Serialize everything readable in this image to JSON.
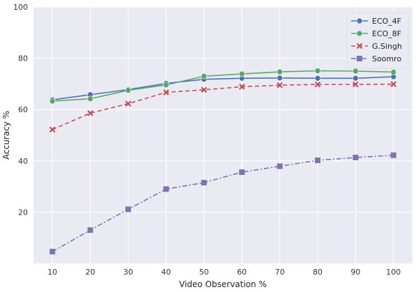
{
  "chart_data": {
    "type": "line",
    "x": [
      10,
      20,
      30,
      40,
      50,
      60,
      70,
      80,
      90,
      100
    ],
    "xticks": [
      "10",
      "20",
      "30",
      "40",
      "50",
      "60",
      "70",
      "80",
      "90",
      "100"
    ],
    "yticks": [
      "20",
      "40",
      "60",
      "80",
      "100"
    ],
    "xlabel": "Video Observation %",
    "ylabel": "Accuracy %",
    "xlim": [
      5,
      105
    ],
    "ylim": [
      0,
      100
    ],
    "grid": true,
    "legend_position": "top-right",
    "series": [
      {
        "name": "ECO_4F",
        "values": [
          63.8,
          65.8,
          67.8,
          70.2,
          71.8,
          72.2,
          72.3,
          72.2,
          72.2,
          72.8
        ],
        "color": "#4c72b0",
        "marker": "circle",
        "linestyle": "solid"
      },
      {
        "name": "ECO_8F",
        "values": [
          63.3,
          64.2,
          67.5,
          69.6,
          73.0,
          73.9,
          74.7,
          75.1,
          75.0,
          74.6
        ],
        "color": "#55a868",
        "marker": "circle",
        "linestyle": "solid"
      },
      {
        "name": "G.Singh",
        "values": [
          52.2,
          58.6,
          62.3,
          66.7,
          67.7,
          68.9,
          69.5,
          69.8,
          69.8,
          69.9
        ],
        "color": "#c44e52",
        "marker": "x",
        "linestyle": "dashed"
      },
      {
        "name": "Soomro",
        "values": [
          4.6,
          13.0,
          21.1,
          29.0,
          31.5,
          35.6,
          37.9,
          40.2,
          41.3,
          42.2
        ],
        "color": "#8172b2",
        "marker": "square",
        "linestyle": "dashdot"
      }
    ]
  }
}
